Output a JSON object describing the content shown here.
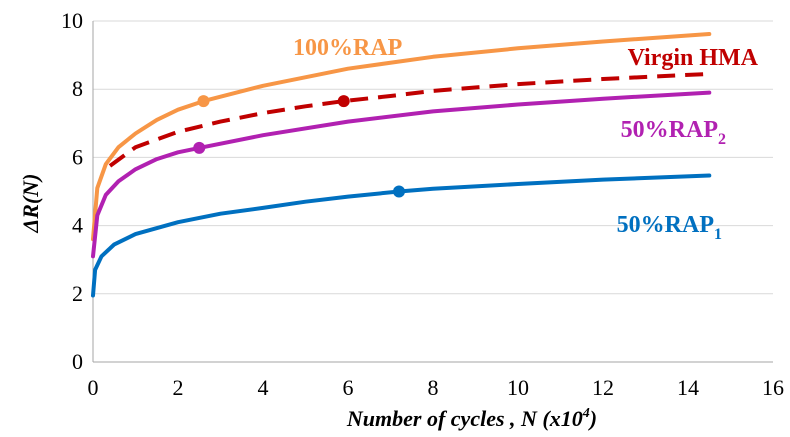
{
  "chart_data": {
    "type": "line",
    "xlabel": "Number of cycles , N (x10",
    "xlabel_sup": "4",
    "xlabel_close": ")",
    "ylabel": "ΔR(N)",
    "xlim": [
      0,
      16
    ],
    "ylim": [
      0,
      10
    ],
    "xticks": [
      "0",
      "2",
      "4",
      "6",
      "8",
      "10",
      "12",
      "14",
      "16"
    ],
    "yticks": [
      "0",
      "2",
      "4",
      "6",
      "8",
      "10"
    ],
    "grid": true,
    "legend": "inline labels",
    "series": [
      {
        "name": "100%RAP",
        "label_main": "100%RAP",
        "label_sub": "",
        "color": "#f79646",
        "dash": false,
        "x": [
          0,
          0.1,
          0.3,
          0.6,
          1,
          1.5,
          2,
          2.6,
          4,
          6,
          8,
          10,
          12,
          14.5
        ],
        "y": [
          3.6,
          5.1,
          5.8,
          6.3,
          6.7,
          7.1,
          7.4,
          7.65,
          8.1,
          8.6,
          8.95,
          9.2,
          9.4,
          9.62
        ],
        "marker": [
          2.6,
          7.65
        ]
      },
      {
        "name": "Virgin HMA",
        "label_main": "Virgin HMA",
        "label_sub": "",
        "color": "#c00000",
        "dash": true,
        "x": [
          0.4,
          1,
          2,
          3,
          4,
          5,
          5.9,
          7,
          8,
          10,
          12,
          14.5
        ],
        "y": [
          5.75,
          6.3,
          6.75,
          7.05,
          7.3,
          7.5,
          7.65,
          7.8,
          7.95,
          8.15,
          8.3,
          8.45
        ],
        "marker": [
          5.9,
          7.65
        ]
      },
      {
        "name": "50%RAP2",
        "label_main": "50%RAP",
        "label_sub": "2",
        "color": "#b121b1",
        "dash": false,
        "x": [
          0,
          0.1,
          0.3,
          0.6,
          1,
          1.5,
          2,
          2.5,
          4,
          6,
          8,
          10,
          12,
          14.5
        ],
        "y": [
          3.1,
          4.3,
          4.9,
          5.3,
          5.65,
          5.95,
          6.15,
          6.28,
          6.65,
          7.05,
          7.35,
          7.55,
          7.72,
          7.9
        ],
        "marker": [
          2.5,
          6.28
        ]
      },
      {
        "name": "50%RAP1",
        "label_main": "50%RAP",
        "label_sub": "1",
        "color": "#0070c0",
        "dash": false,
        "x": [
          0,
          0.05,
          0.2,
          0.5,
          1,
          2,
          3,
          4,
          5,
          6,
          7.2,
          8,
          10,
          12,
          14.5
        ],
        "y": [
          1.95,
          2.7,
          3.1,
          3.45,
          3.75,
          4.1,
          4.35,
          4.52,
          4.7,
          4.85,
          5.0,
          5.08,
          5.22,
          5.35,
          5.47
        ],
        "marker": [
          7.2,
          5.0
        ]
      }
    ]
  }
}
